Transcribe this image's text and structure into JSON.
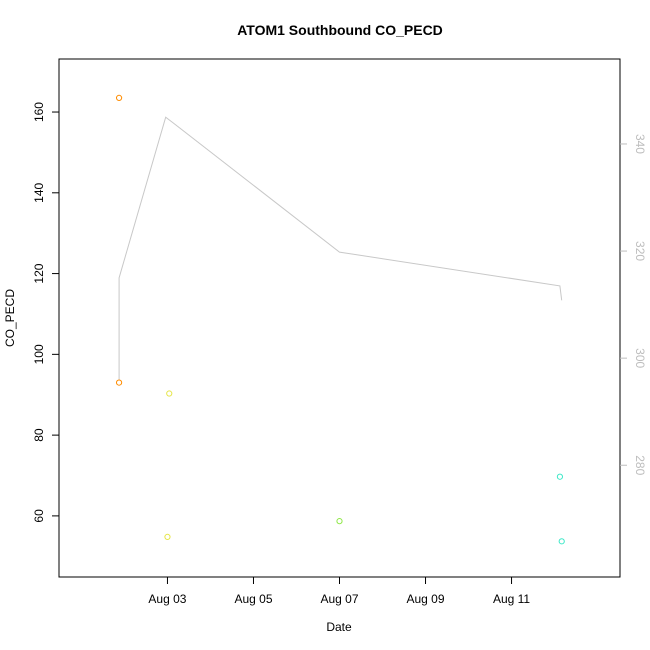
{
  "chart_data": {
    "type": "scatter",
    "title": "ATOM1 Southbound CO_PECD",
    "xlabel": "Date",
    "ylabel": "CO_PECD",
    "x_axis": {
      "type": "date",
      "range": [
        "2023-08-01",
        "2023-08-13"
      ],
      "ticks": [
        {
          "date": "2023-08-03",
          "label": "Aug 03"
        },
        {
          "date": "2023-08-05",
          "label": "Aug 05"
        },
        {
          "date": "2023-08-07",
          "label": "Aug 07"
        },
        {
          "date": "2023-08-09",
          "label": "Aug 09"
        },
        {
          "date": "2023-08-11",
          "label": "Aug 11"
        }
      ]
    },
    "y_left": {
      "range": [
        50,
        168
      ],
      "ticks": [
        60,
        80,
        100,
        120,
        140,
        160
      ]
    },
    "y_right": {
      "range": [
        263,
        352
      ],
      "ticks": [
        280,
        300,
        320,
        340
      ],
      "color": "#bdbdbd"
    },
    "grid": false,
    "points": [
      {
        "x": "2023-08-01T21:00",
        "y": 163.5,
        "color": "#ff8c00"
      },
      {
        "x": "2023-08-01T21:00",
        "y": 93.0,
        "color": "#ff8c00"
      },
      {
        "x": "2023-08-03T01:00",
        "y": 90.3,
        "color": "#e6e64a"
      },
      {
        "x": "2023-08-03T00:00",
        "y": 54.8,
        "color": "#e6e64a"
      },
      {
        "x": "2023-08-07T00:00",
        "y": 58.7,
        "color": "#90e84a"
      },
      {
        "x": "2023-08-12T03:00",
        "y": 69.7,
        "color": "#3ee8c8"
      },
      {
        "x": "2023-08-12T04:00",
        "y": 53.7,
        "color": "#3ee8c8"
      }
    ],
    "line_series": {
      "color": "#c8c8c8",
      "axis": "right",
      "points": [
        {
          "x": "2023-08-01T21:00",
          "y": 296.0
        },
        {
          "x": "2023-08-01T21:00",
          "y": 315.0
        },
        {
          "x": "2023-08-02T23:00",
          "y": 345.0
        },
        {
          "x": "2023-08-03T03:00",
          "y": 344.0
        },
        {
          "x": "2023-08-07T00:00",
          "y": 319.8
        },
        {
          "x": "2023-08-12T03:00",
          "y": 313.5
        },
        {
          "x": "2023-08-12T04:00",
          "y": 310.8
        }
      ]
    }
  }
}
